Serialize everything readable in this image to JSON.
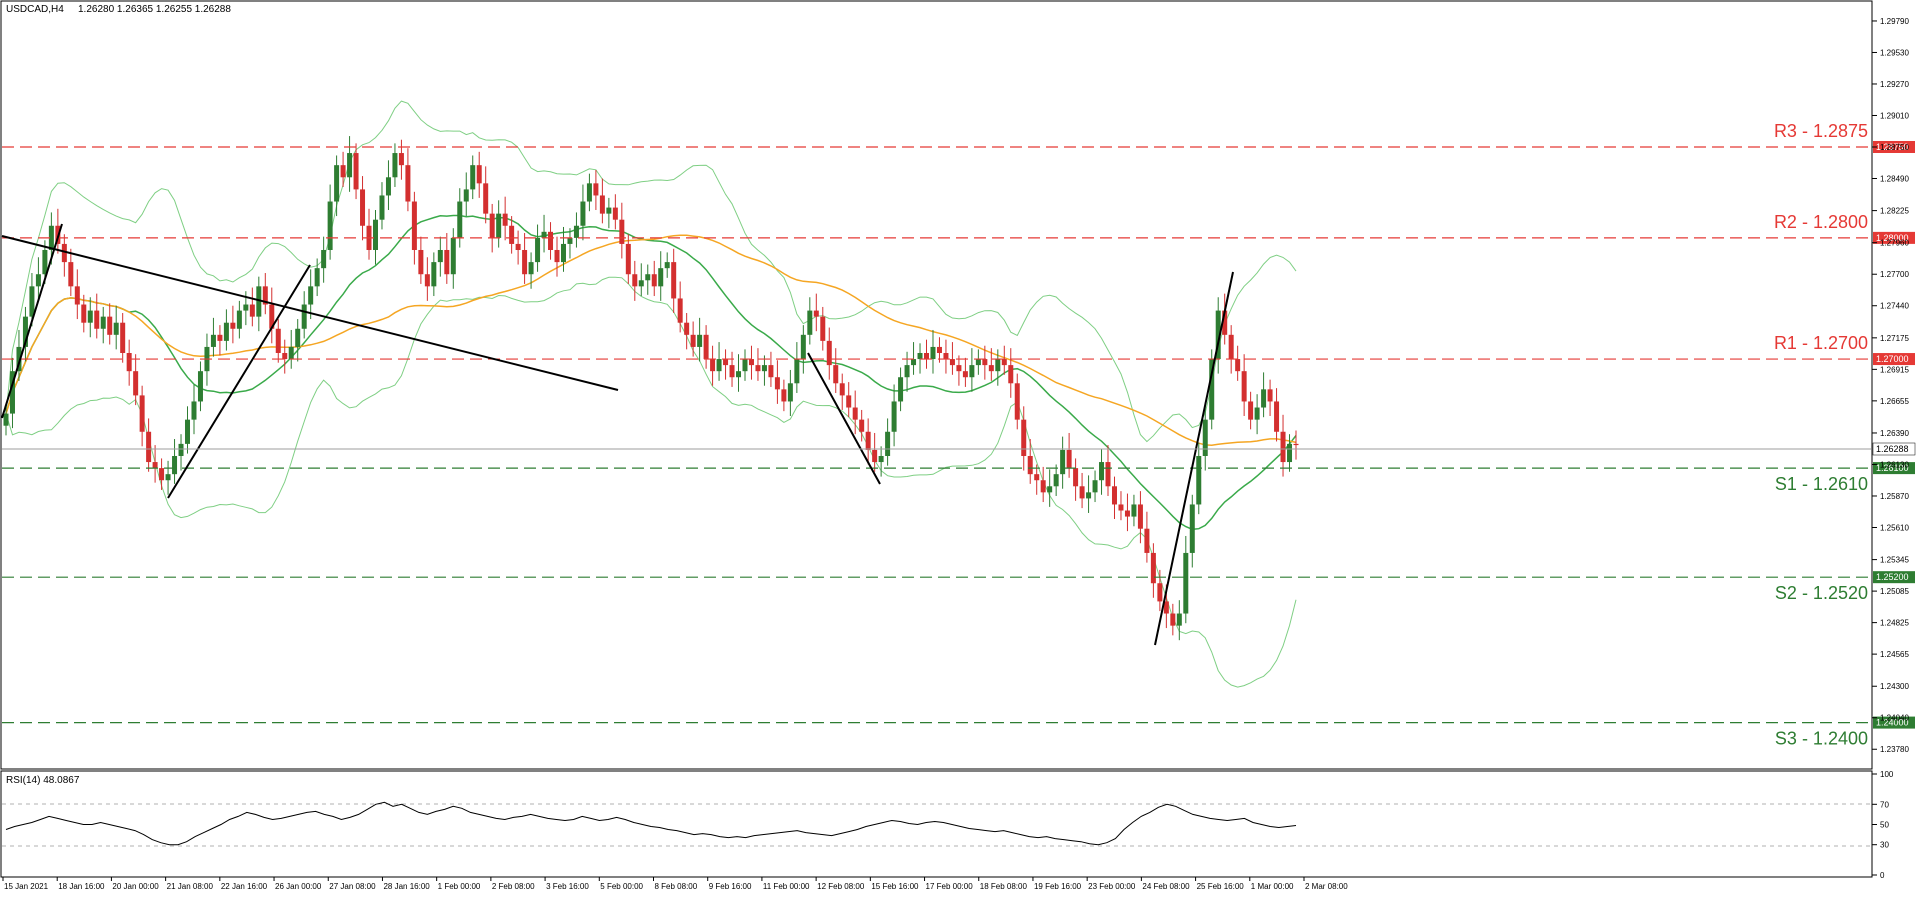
{
  "header": {
    "symbol": "USDCAD,H4",
    "ohlc": "1.26280 1.26365 1.26255 1.26288"
  },
  "rsi_header": "RSI(14) 48.0867",
  "price_axis": {
    "ticks": [
      "1.29790",
      "1.29530",
      "1.29270",
      "1.29010",
      "1.28750",
      "1.28490",
      "1.28225",
      "1.27960",
      "1.27700",
      "1.27440",
      "1.27175",
      "1.26915",
      "1.26655",
      "1.26390",
      "1.26130",
      "1.25870",
      "1.25610",
      "1.25345",
      "1.25085",
      "1.24825",
      "1.24565",
      "1.24300",
      "1.24040",
      "1.23780"
    ],
    "current_price": "1.26288"
  },
  "levels": [
    {
      "label": "R3 - 1.2875",
      "tag": "1.28750",
      "kind": "resistance"
    },
    {
      "label": "R2 - 1.2800",
      "tag": "1.28000",
      "kind": "resistance"
    },
    {
      "label": "R1 - 1.2700",
      "tag": "1.27000",
      "kind": "resistance"
    },
    {
      "label": "S1 - 1.2610",
      "tag": "1.26100",
      "kind": "support"
    },
    {
      "label": "S2 - 1.2520",
      "tag": "1.25200",
      "kind": "support"
    },
    {
      "label": "S3 - 1.2400",
      "tag": "1.24000",
      "kind": "support"
    }
  ],
  "rsi_axis": {
    "ticks": [
      "100",
      "70",
      "50",
      "30",
      "0"
    ]
  },
  "time_axis": [
    "15 Jan 2021",
    "18 Jan 16:00",
    "20 Jan 00:00",
    "21 Jan 08:00",
    "22 Jan 16:00",
    "26 Jan 00:00",
    "27 Jan 08:00",
    "28 Jan 16:00",
    "1 Feb 00:00",
    "2 Feb 08:00",
    "3 Feb 16:00",
    "5 Feb 00:00",
    "8 Feb 08:00",
    "9 Feb 16:00",
    "11 Feb 00:00",
    "12 Feb 08:00",
    "15 Feb 16:00",
    "17 Feb 00:00",
    "18 Feb 08:00",
    "19 Feb 16:00",
    "23 Feb 00:00",
    "24 Feb 08:00",
    "25 Feb 16:00",
    "1 Mar 00:00",
    "2 Mar 08:00"
  ],
  "colors": {
    "bull": "#2e7d32",
    "bear": "#d32f2f",
    "resistance": "#e53935",
    "support": "#2e7d32",
    "ma_long": "#f5a623",
    "ma_mid": "#3aaa4a",
    "band": "#7fcf84",
    "trendline": "#000000"
  },
  "chart_data": {
    "type": "line",
    "price_closes": [
      1.2655,
      1.269,
      1.271,
      1.2735,
      1.276,
      1.277,
      1.279,
      1.281,
      1.2795,
      1.278,
      1.276,
      1.2745,
      1.273,
      1.274,
      1.2725,
      1.2735,
      1.272,
      1.273,
      1.2705,
      1.269,
      1.267,
      1.264,
      1.2615,
      1.261,
      1.26,
      1.2605,
      1.262,
      1.263,
      1.265,
      1.2665,
      1.269,
      1.271,
      1.272,
      1.2715,
      1.273,
      1.2725,
      1.274,
      1.2745,
      1.2735,
      1.276,
      1.2745,
      1.2725,
      1.2705,
      1.27,
      1.271,
      1.2725,
      1.2745,
      1.276,
      1.2775,
      1.279,
      1.283,
      1.286,
      1.285,
      1.287,
      1.284,
      1.281,
      1.279,
      1.2815,
      1.2835,
      1.285,
      1.287,
      1.286,
      1.283,
      1.279,
      1.277,
      1.276,
      1.278,
      1.279,
      1.277,
      1.28,
      1.283,
      1.284,
      1.286,
      1.2845,
      1.282,
      1.28,
      1.282,
      1.281,
      1.2795,
      1.279,
      1.277,
      1.278,
      1.28,
      1.2805,
      1.279,
      1.278,
      1.2795,
      1.28,
      1.281,
      1.283,
      1.2845,
      1.2835,
      1.282,
      1.2825,
      1.2815,
      1.2795,
      1.277,
      1.276,
      1.2765,
      1.277,
      1.276,
      1.2775,
      1.278,
      1.275,
      1.273,
      1.272,
      1.271,
      1.272,
      1.27,
      1.269,
      1.27,
      1.2695,
      1.2685,
      1.269,
      1.27,
      1.2695,
      1.269,
      1.2695,
      1.2685,
      1.2675,
      1.2665,
      1.268,
      1.27,
      1.272,
      1.274,
      1.2735,
      1.2715,
      1.2695,
      1.268,
      1.267,
      1.266,
      1.265,
      1.264,
      1.2625,
      1.2615,
      1.262,
      1.264,
      1.2665,
      1.2685,
      1.2695,
      1.27,
      1.2705,
      1.27,
      1.271,
      1.2705,
      1.27,
      1.2695,
      1.269,
      1.2685,
      1.2695,
      1.27,
      1.2695,
      1.269,
      1.27,
      1.2695,
      1.268,
      1.265,
      1.262,
      1.2605,
      1.26,
      1.259,
      1.2595,
      1.2605,
      1.2625,
      1.261,
      1.2595,
      1.2585,
      1.259,
      1.26,
      1.2615,
      1.2595,
      1.258,
      1.2575,
      1.257,
      1.258,
      1.256,
      1.254,
      1.2515,
      1.25,
      1.249,
      1.248,
      1.249,
      1.254,
      1.258,
      1.262,
      1.265,
      1.27,
      1.274,
      1.272,
      1.27,
      1.269,
      1.2665,
      1.265,
      1.266,
      1.2675,
      1.2665,
      1.264,
      1.2615,
      1.263,
      1.2629
    ],
    "rsi_values": [
      45,
      48,
      50,
      52,
      55,
      58,
      56,
      54,
      52,
      50,
      50,
      52,
      50,
      48,
      46,
      44,
      40,
      35,
      32,
      30,
      30,
      33,
      38,
      42,
      46,
      50,
      55,
      58,
      62,
      60,
      57,
      55,
      56,
      58,
      60,
      62,
      63,
      60,
      58,
      55,
      57,
      60,
      65,
      70,
      72,
      68,
      70,
      66,
      62,
      60,
      63,
      65,
      68,
      66,
      62,
      60,
      58,
      56,
      55,
      57,
      58,
      60,
      58,
      56,
      55,
      54,
      55,
      58,
      56,
      54,
      55,
      57,
      55,
      52,
      50,
      48,
      47,
      45,
      44,
      42,
      40,
      41,
      40,
      38,
      37,
      38,
      37,
      39,
      40,
      41,
      42,
      43,
      44,
      42,
      41,
      40,
      39,
      41,
      43,
      45,
      48,
      50,
      52,
      54,
      53,
      51,
      50,
      52,
      53,
      52,
      50,
      48,
      46,
      45,
      44,
      43,
      44,
      42,
      40,
      38,
      37,
      38,
      36,
      35,
      34,
      33,
      31,
      30,
      32,
      36,
      45,
      52,
      58,
      62,
      67,
      70,
      68,
      64,
      60,
      58,
      56,
      55,
      54,
      55,
      56,
      52,
      50,
      48,
      47,
      48,
      49
    ],
    "ylim": [
      1.2365,
      1.2993
    ],
    "rsi_ylim": [
      0,
      100
    ]
  }
}
